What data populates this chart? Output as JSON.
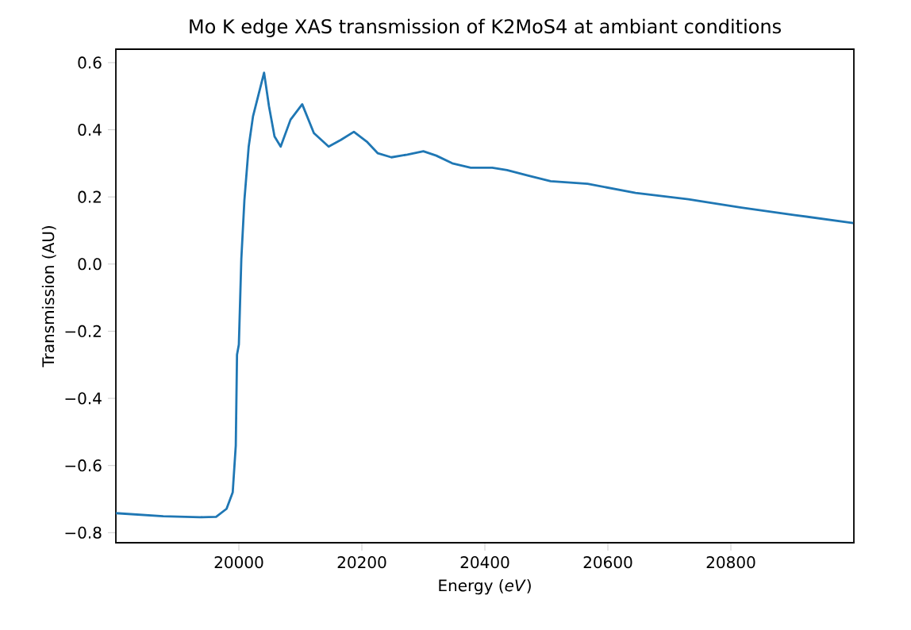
{
  "chart_data": {
    "type": "line",
    "title": "Mo K edge XAS transmission of K2MoS4 at ambiant conditions",
    "xlabel": "Energy (*eV*)",
    "ylabel": "Transmission (AU)",
    "xlim": [
      19800,
      21000
    ],
    "ylim": [
      -0.83,
      0.64
    ],
    "xticks": [
      20000,
      20200,
      20400,
      20600,
      20800
    ],
    "yticks": [
      {
        "value": -0.8,
        "label": "−0.8"
      },
      {
        "value": -0.6,
        "label": "−0.6"
      },
      {
        "value": -0.4,
        "label": "−0.4"
      },
      {
        "value": -0.2,
        "label": "−0.2"
      },
      {
        "value": 0.0,
        "label": "0.0"
      },
      {
        "value": 0.2,
        "label": "0.2"
      },
      {
        "value": 0.4,
        "label": "0.4"
      },
      {
        "value": 0.6,
        "label": "0.6"
      }
    ],
    "grid": false,
    "marker": "none",
    "line_style": "solid",
    "series": [
      {
        "color": "#1f77b4",
        "x": [
          19800,
          19877,
          19937,
          19963,
          19980,
          19990,
          19995,
          19997,
          20000,
          20004,
          20009,
          20016,
          20023,
          20041,
          20049,
          20058,
          20068,
          20084,
          20103,
          20122,
          20146,
          20166,
          20187,
          20209,
          20226,
          20248,
          20274,
          20300,
          20321,
          20347,
          20377,
          20412,
          20436,
          20472,
          20507,
          20567,
          20645,
          20731,
          20817,
          20904,
          20999
        ],
        "values": [
          -0.742,
          -0.751,
          -0.754,
          -0.753,
          -0.729,
          -0.68,
          -0.54,
          -0.27,
          -0.24,
          0.015,
          0.19,
          0.35,
          0.44,
          0.57,
          0.47,
          0.38,
          0.35,
          0.43,
          0.476,
          0.39,
          0.35,
          0.37,
          0.394,
          0.363,
          0.33,
          0.318,
          0.326,
          0.336,
          0.323,
          0.3,
          0.287,
          0.287,
          0.28,
          0.263,
          0.247,
          0.239,
          0.212,
          0.193,
          0.168,
          0.146,
          0.122
        ]
      }
    ]
  }
}
